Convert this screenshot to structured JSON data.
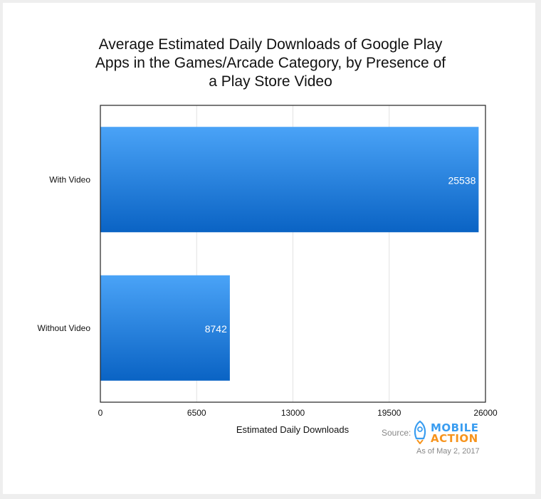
{
  "chart_data": {
    "type": "bar",
    "orientation": "horizontal",
    "title_lines": [
      "Average Estimated Daily Downloads of Google Play",
      "Apps in the Games/Arcade Category, by Presence of",
      "a Play Store Video"
    ],
    "categories": [
      "With Video",
      "Without Video"
    ],
    "values": [
      25538,
      8742
    ],
    "data_labels": [
      "25538",
      "8742"
    ],
    "xlabel": "Estimated Daily Downloads",
    "ylabel": "",
    "xlim": [
      0,
      26000
    ],
    "ticks": [
      "0",
      "6500",
      "13000",
      "19500",
      "26000"
    ],
    "tick_values": [
      0,
      6500,
      13000,
      19500,
      26000
    ],
    "grid": true,
    "colors": {
      "bar_top": "#4aa3f7",
      "bar_bottom": "#0a63c4"
    }
  },
  "source": {
    "label": "Source:",
    "logo_top": "MOBILE",
    "logo_bottom": "ACTION",
    "as_of": "As of May 2, 2017"
  }
}
